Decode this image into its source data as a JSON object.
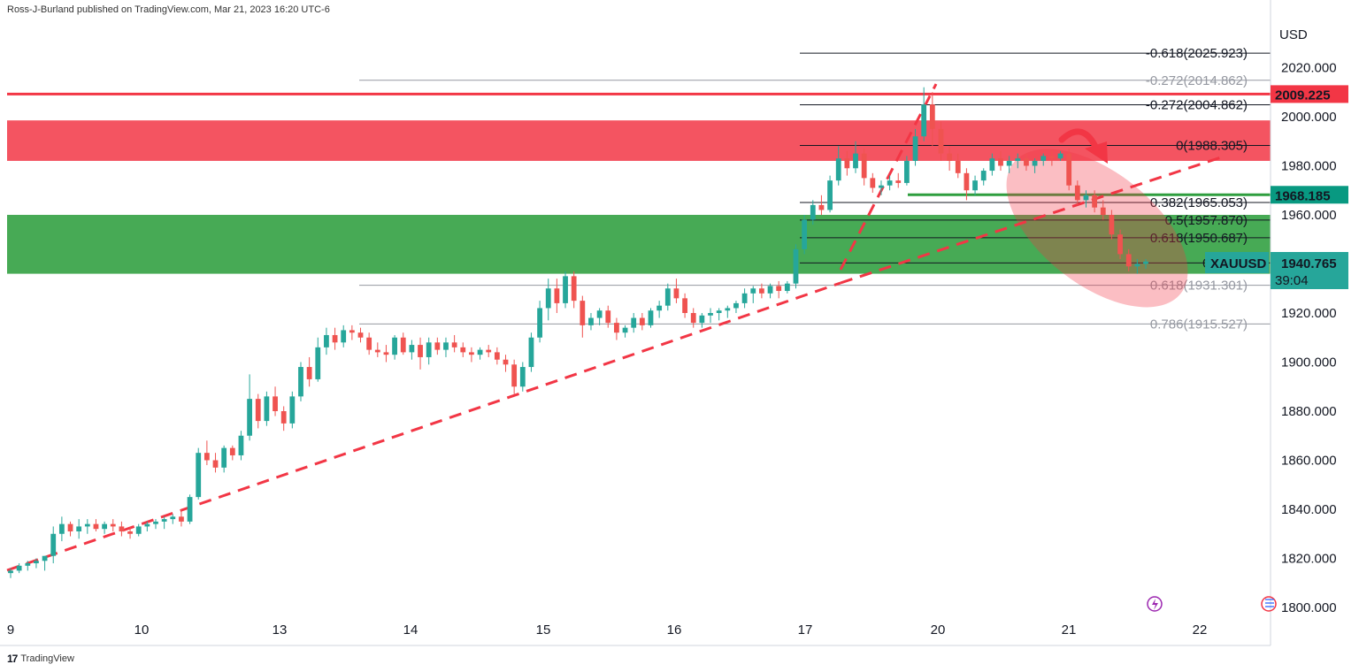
{
  "header": {
    "text": "Ross-J-Burland published on TradingView.com, Mar 21, 2023 16:20 UTC-6"
  },
  "footer": {
    "brand": "TradingView",
    "logo": "17"
  },
  "colors": {
    "up": "#26a69a",
    "down": "#ef5350",
    "resistance": "#f23645",
    "support": "#089981",
    "trend": "#f23645",
    "fib": "#131722"
  },
  "badges": {
    "resistance": "2009.225",
    "support": "1968.185",
    "symbol": "XAUUSD",
    "price": "1940.765",
    "countdown": "39:04"
  },
  "icons": [
    "lightning-icon",
    "flag-icon"
  ],
  "chart_data": {
    "type": "candlestick",
    "currency": "USD",
    "y_ticks": [
      "2020.000",
      "2000.000",
      "1980.000",
      "1960.000",
      "1940.000",
      "1920.000",
      "1900.000",
      "1880.000",
      "1860.000",
      "1840.000",
      "1820.000",
      "1800.000"
    ],
    "ylim": [
      1800,
      2024
    ],
    "x_ticks": [
      "9",
      "10",
      "13",
      "14",
      "15",
      "16",
      "17",
      "20",
      "21",
      "22"
    ],
    "fib_upper": [
      {
        "label": "-0.618(2025.923)",
        "value": 2025.923
      },
      {
        "label": "-0.272(2004.862)",
        "value": 2004.862
      },
      {
        "label": "0(1988.305)",
        "value": 1988.305
      },
      {
        "label": "0.382(1965.053)",
        "value": 1965.053
      },
      {
        "label": "0.5(1957.870)",
        "value": 1957.87
      },
      {
        "label": "0.618(1950.687)",
        "value": 1950.687
      },
      {
        "label": "0.786(1",
        "value": 1940.4
      }
    ],
    "fib_lower": [
      {
        "label": "-0.272(2014.862)",
        "value": 2014.862
      },
      {
        "label": "0.618(1931.301)",
        "value": 1931.301
      },
      {
        "label": "0.786(1915.527)",
        "value": 1915.527
      }
    ],
    "zones": [
      {
        "name": "resistance zone",
        "from": 1982,
        "to": 1998.5
      },
      {
        "name": "support zone",
        "from": 1936,
        "to": 1960
      }
    ],
    "levels": [
      {
        "name": "resistance line",
        "value": 2009.225
      },
      {
        "name": "support line",
        "value": 1968.185
      }
    ],
    "candles": [
      [
        1814,
        1816,
        1812,
        1815
      ],
      [
        1815,
        1818,
        1814,
        1817
      ],
      [
        1817,
        1819,
        1815,
        1818
      ],
      [
        1818,
        1820,
        1816,
        1819
      ],
      [
        1819,
        1821,
        1815,
        1821
      ],
      [
        1821,
        1833,
        1818,
        1830
      ],
      [
        1830,
        1837,
        1827,
        1834
      ],
      [
        1834,
        1835,
        1829,
        1831
      ],
      [
        1831,
        1836,
        1828,
        1833
      ],
      [
        1833,
        1836,
        1830,
        1834
      ],
      [
        1834,
        1836,
        1831,
        1832
      ],
      [
        1832,
        1835,
        1830,
        1834
      ],
      [
        1834,
        1836,
        1831,
        1833
      ],
      [
        1833,
        1835,
        1829,
        1831
      ],
      [
        1831,
        1833,
        1828,
        1830
      ],
      [
        1830,
        1834,
        1829,
        1833
      ],
      [
        1833,
        1835,
        1831,
        1834
      ],
      [
        1834,
        1836,
        1832,
        1835
      ],
      [
        1835,
        1837,
        1832,
        1836
      ],
      [
        1836,
        1838,
        1834,
        1837
      ],
      [
        1837,
        1840,
        1833,
        1835
      ],
      [
        1835,
        1846,
        1834,
        1845
      ],
      [
        1845,
        1865,
        1844,
        1863
      ],
      [
        1863,
        1868,
        1858,
        1860
      ],
      [
        1860,
        1863,
        1855,
        1857
      ],
      [
        1857,
        1866,
        1855,
        1865
      ],
      [
        1865,
        1866,
        1860,
        1862
      ],
      [
        1862,
        1872,
        1860,
        1870
      ],
      [
        1870,
        1895,
        1868,
        1885
      ],
      [
        1885,
        1887,
        1873,
        1876
      ],
      [
        1876,
        1888,
        1874,
        1886
      ],
      [
        1886,
        1890,
        1878,
        1880
      ],
      [
        1880,
        1882,
        1872,
        1875
      ],
      [
        1875,
        1888,
        1873,
        1886
      ],
      [
        1886,
        1900,
        1884,
        1898
      ],
      [
        1898,
        1902,
        1890,
        1893
      ],
      [
        1893,
        1910,
        1892,
        1906
      ],
      [
        1906,
        1914,
        1903,
        1911
      ],
      [
        1911,
        1914,
        1905,
        1908
      ],
      [
        1908,
        1915,
        1906,
        1913
      ],
      [
        1913,
        1915,
        1909,
        1912
      ],
      [
        1912,
        1914,
        1908,
        1910
      ],
      [
        1910,
        1912,
        1903,
        1905
      ],
      [
        1905,
        1908,
        1902,
        1904
      ],
      [
        1904,
        1907,
        1900,
        1903
      ],
      [
        1903,
        1911,
        1901,
        1910
      ],
      [
        1910,
        1912,
        1903,
        1904
      ],
      [
        1904,
        1909,
        1901,
        1907
      ],
      [
        1907,
        1910,
        1897,
        1902
      ],
      [
        1902,
        1910,
        1899,
        1908
      ],
      [
        1908,
        1910,
        1903,
        1905
      ],
      [
        1905,
        1910,
        1902,
        1908
      ],
      [
        1908,
        1911,
        1904,
        1906
      ],
      [
        1906,
        1908,
        1902,
        1904
      ],
      [
        1904,
        1906,
        1900,
        1903
      ],
      [
        1903,
        1906,
        1901,
        1905
      ],
      [
        1905,
        1907,
        1902,
        1904
      ],
      [
        1904,
        1906,
        1899,
        1901
      ],
      [
        1901,
        1903,
        1896,
        1899
      ],
      [
        1899,
        1901,
        1887,
        1890
      ],
      [
        1890,
        1900,
        1888,
        1898
      ],
      [
        1898,
        1912,
        1896,
        1910
      ],
      [
        1910,
        1925,
        1908,
        1922
      ],
      [
        1922,
        1934,
        1917,
        1930
      ],
      [
        1930,
        1934,
        1920,
        1924
      ],
      [
        1924,
        1937,
        1922,
        1935
      ],
      [
        1935,
        1937,
        1922,
        1925
      ],
      [
        1925,
        1927,
        1910,
        1915
      ],
      [
        1915,
        1920,
        1913,
        1918
      ],
      [
        1918,
        1922,
        1915,
        1921
      ],
      [
        1921,
        1923,
        1914,
        1916
      ],
      [
        1916,
        1918,
        1909,
        1912
      ],
      [
        1912,
        1915,
        1910,
        1914
      ],
      [
        1914,
        1920,
        1912,
        1918
      ],
      [
        1918,
        1920,
        1913,
        1915
      ],
      [
        1915,
        1922,
        1914,
        1921
      ],
      [
        1921,
        1925,
        1918,
        1923
      ],
      [
        1923,
        1932,
        1921,
        1930
      ],
      [
        1930,
        1934,
        1924,
        1926
      ],
      [
        1926,
        1928,
        1918,
        1920
      ],
      [
        1920,
        1922,
        1914,
        1916
      ],
      [
        1916,
        1920,
        1914,
        1919
      ],
      [
        1919,
        1922,
        1916,
        1920
      ],
      [
        1920,
        1922,
        1917,
        1921
      ],
      [
        1921,
        1923,
        1918,
        1922
      ],
      [
        1922,
        1925,
        1920,
        1924
      ],
      [
        1924,
        1930,
        1922,
        1928
      ],
      [
        1928,
        1931,
        1924,
        1930
      ],
      [
        1930,
        1932,
        1926,
        1928
      ],
      [
        1928,
        1932,
        1926,
        1931
      ],
      [
        1931,
        1933,
        1926,
        1929
      ],
      [
        1929,
        1933,
        1928,
        1932
      ],
      [
        1932,
        1948,
        1930,
        1946
      ],
      [
        1946,
        1960,
        1944,
        1958
      ],
      [
        1958,
        1966,
        1956,
        1964
      ],
      [
        1964,
        1968,
        1960,
        1962
      ],
      [
        1962,
        1976,
        1961,
        1974
      ],
      [
        1974,
        1988,
        1972,
        1983
      ],
      [
        1983,
        1986,
        1976,
        1979
      ],
      [
        1979,
        1990,
        1977,
        1985
      ],
      [
        1985,
        1987,
        1972,
        1975
      ],
      [
        1975,
        1977,
        1969,
        1971
      ],
      [
        1971,
        1974,
        1968,
        1972
      ],
      [
        1972,
        1976,
        1970,
        1974
      ],
      [
        1974,
        1977,
        1971,
        1973
      ],
      [
        1973,
        1984,
        1972,
        1982
      ],
      [
        1982,
        1995,
        1980,
        1992
      ],
      [
        1992,
        2012,
        1990,
        2005
      ],
      [
        2005,
        2010,
        1988,
        1995
      ],
      [
        1995,
        1998,
        1982,
        1985
      ],
      [
        1985,
        1988,
        1978,
        1982
      ],
      [
        1982,
        1985,
        1975,
        1977
      ],
      [
        1977,
        1979,
        1966,
        1970
      ],
      [
        1970,
        1976,
        1968,
        1974
      ],
      [
        1974,
        1979,
        1972,
        1978
      ],
      [
        1978,
        1985,
        1976,
        1983
      ],
      [
        1983,
        1986,
        1978,
        1980
      ],
      [
        1980,
        1984,
        1977,
        1982
      ],
      [
        1982,
        1985,
        1979,
        1983
      ],
      [
        1983,
        1985,
        1978,
        1980
      ],
      [
        1980,
        1983,
        1977,
        1982
      ],
      [
        1982,
        1985,
        1980,
        1984
      ],
      [
        1984,
        1986,
        1980,
        1983
      ],
      [
        1983,
        1986,
        1982,
        1985
      ],
      [
        1985,
        1987,
        1970,
        1972
      ],
      [
        1972,
        1974,
        1964,
        1966
      ],
      [
        1966,
        1970,
        1963,
        1968
      ],
      [
        1968,
        1970,
        1961,
        1963
      ],
      [
        1963,
        1966,
        1958,
        1960
      ],
      [
        1960,
        1962,
        1950,
        1952
      ],
      [
        1952,
        1954,
        1942,
        1944
      ],
      [
        1944,
        1946,
        1937,
        1939
      ],
      [
        1939,
        1942,
        1936,
        1940
      ],
      [
        1940,
        1942,
        1938,
        1941
      ]
    ]
  }
}
